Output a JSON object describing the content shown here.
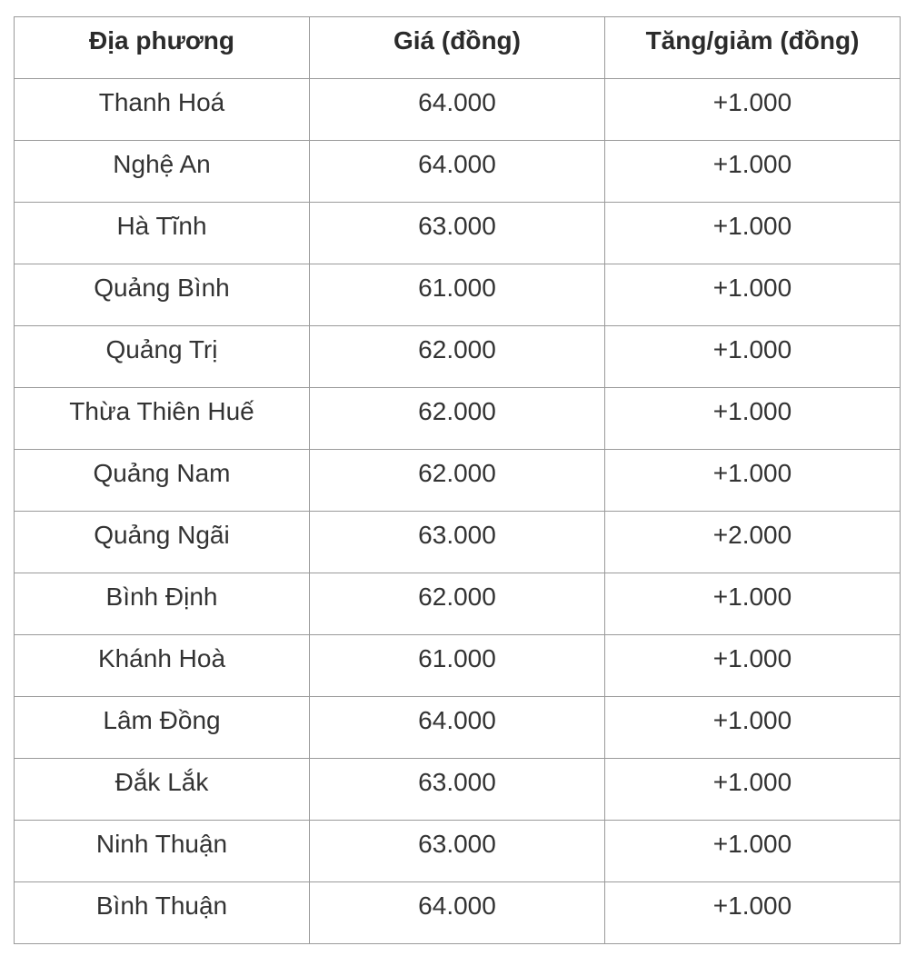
{
  "table": {
    "columns": [
      "Địa phương",
      "Giá (đồng)",
      "Tăng/giảm (đồng)"
    ],
    "rows": [
      {
        "locality": "Thanh Hoá",
        "price": "64.000",
        "change": "+1.000"
      },
      {
        "locality": "Nghệ An",
        "price": "64.000",
        "change": "+1.000"
      },
      {
        "locality": "Hà Tĩnh",
        "price": "63.000",
        "change": "+1.000"
      },
      {
        "locality": "Quảng Bình",
        "price": "61.000",
        "change": "+1.000"
      },
      {
        "locality": "Quảng Trị",
        "price": "62.000",
        "change": "+1.000"
      },
      {
        "locality": "Thừa Thiên Huế",
        "price": "62.000",
        "change": "+1.000"
      },
      {
        "locality": "Quảng Nam",
        "price": "62.000",
        "change": "+1.000"
      },
      {
        "locality": "Quảng Ngãi",
        "price": "63.000",
        "change": "+2.000"
      },
      {
        "locality": "Bình Định",
        "price": "62.000",
        "change": "+1.000"
      },
      {
        "locality": "Khánh Hoà",
        "price": "61.000",
        "change": "+1.000"
      },
      {
        "locality": "Lâm Đồng",
        "price": "64.000",
        "change": "+1.000"
      },
      {
        "locality": "Đắk Lắk",
        "price": "63.000",
        "change": "+1.000"
      },
      {
        "locality": "Ninh Thuận",
        "price": "63.000",
        "change": "+1.000"
      },
      {
        "locality": "Bình Thuận",
        "price": "64.000",
        "change": "+1.000"
      }
    ]
  },
  "chart_data": {
    "type": "table",
    "title": "",
    "columns": [
      "Địa phương",
      "Giá (đồng)",
      "Tăng/giảm (đồng)"
    ],
    "rows": [
      [
        "Thanh Hoá",
        64000,
        1000
      ],
      [
        "Nghệ An",
        64000,
        1000
      ],
      [
        "Hà Tĩnh",
        63000,
        1000
      ],
      [
        "Quảng Bình",
        61000,
        1000
      ],
      [
        "Quảng Trị",
        62000,
        1000
      ],
      [
        "Thừa Thiên Huế",
        62000,
        1000
      ],
      [
        "Quảng Nam",
        62000,
        1000
      ],
      [
        "Quảng Ngãi",
        63000,
        2000
      ],
      [
        "Bình Định",
        62000,
        1000
      ],
      [
        "Khánh Hoà",
        61000,
        1000
      ],
      [
        "Lâm Đồng",
        64000,
        1000
      ],
      [
        "Đắk Lắk",
        63000,
        1000
      ],
      [
        "Ninh Thuận",
        63000,
        1000
      ],
      [
        "Bình Thuận",
        64000,
        1000
      ]
    ],
    "value_format": "thousands with dot separator, change prefixed with +"
  },
  "colors": {
    "background": "#ffffff",
    "border": "#9a9a9a",
    "text": "#333333"
  }
}
